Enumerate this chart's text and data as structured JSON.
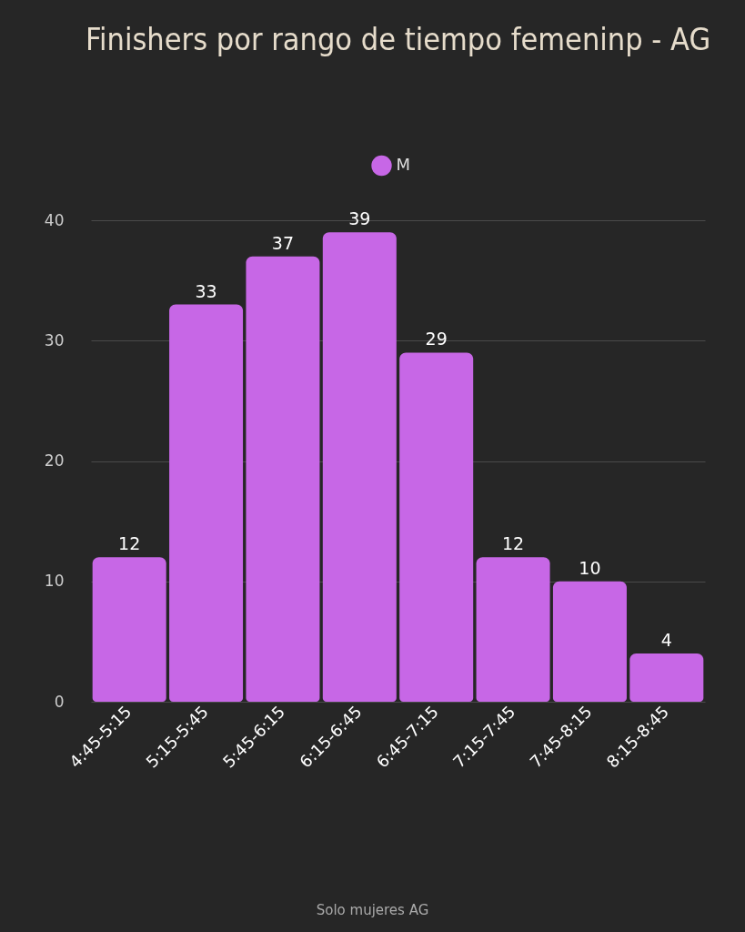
{
  "chart_data": {
    "type": "bar",
    "title": "Finishers por rango de tiempo femeninp - AG",
    "categories": [
      "4:45-5:15",
      "5:15-5:45",
      "5:45-6:15",
      "6:15-6:45",
      "6:45-7:15",
      "7:15-7:45",
      "7:45-8:15",
      "8:15-8:45"
    ],
    "series": [
      {
        "name": "M",
        "color": "#c767e6",
        "values": [
          12,
          33,
          37,
          39,
          29,
          12,
          10,
          4
        ]
      }
    ],
    "ylim": [
      0,
      40
    ],
    "yticks": [
      0,
      10,
      20,
      30,
      40
    ],
    "grid": "y",
    "legend": "top",
    "data_labels": true,
    "annotations": [
      "Solo mujeres AG"
    ]
  }
}
